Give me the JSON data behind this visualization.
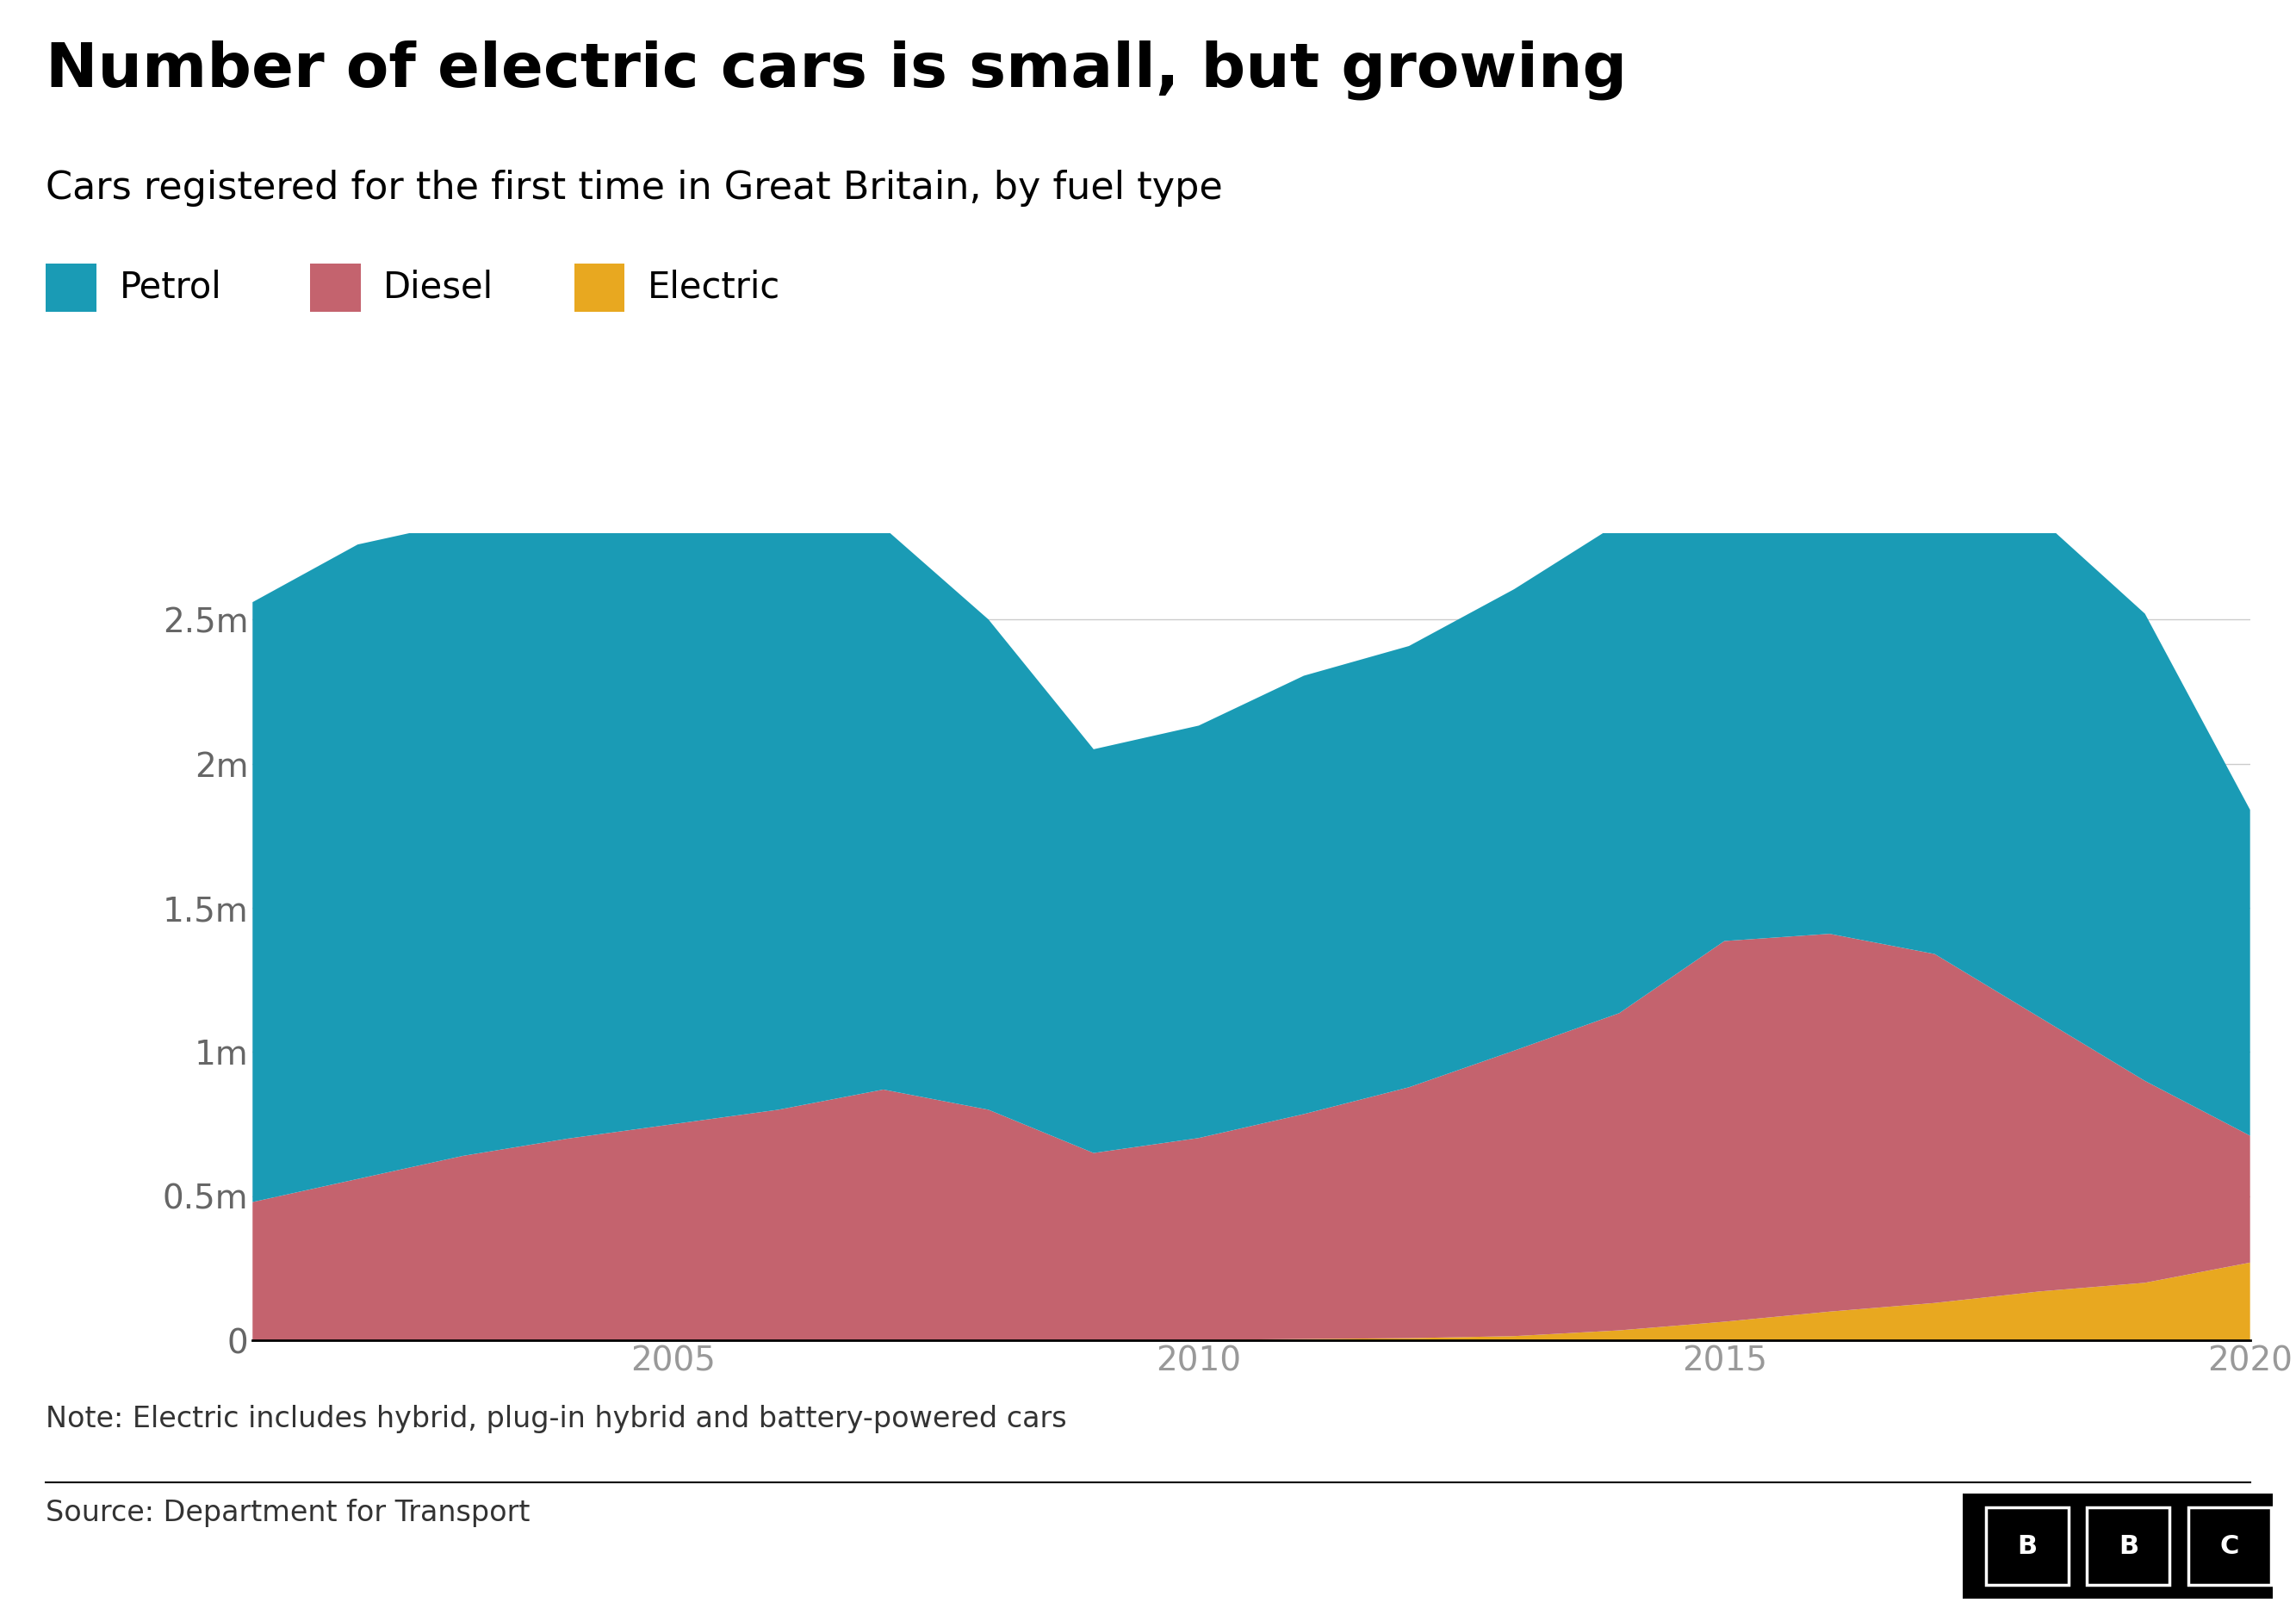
{
  "title": "Number of electric cars is small, but growing",
  "subtitle": "Cars registered for the first time in Great Britain, by fuel type",
  "note": "Note: Electric includes hybrid, plug-in hybrid and battery-powered cars",
  "source": "Source: Department for Transport",
  "colors": {
    "petrol": "#1a9bb5",
    "diesel": "#c4636e",
    "electric": "#e8a820"
  },
  "legend_labels": [
    "Petrol",
    "Diesel",
    "Electric"
  ],
  "years": [
    2001,
    2002,
    2003,
    2004,
    2005,
    2006,
    2007,
    2008,
    2009,
    2010,
    2011,
    2012,
    2013,
    2014,
    2015,
    2016,
    2017,
    2018,
    2019,
    2020
  ],
  "petrol": [
    2080000,
    2200000,
    2200000,
    2100000,
    2050000,
    2000000,
    1950000,
    1700000,
    1400000,
    1430000,
    1520000,
    1530000,
    1600000,
    1700000,
    1780000,
    1870000,
    1820000,
    1730000,
    1620000,
    1130000
  ],
  "diesel": [
    480000,
    560000,
    640000,
    700000,
    750000,
    800000,
    870000,
    800000,
    650000,
    700000,
    780000,
    870000,
    990000,
    1100000,
    1320000,
    1310000,
    1210000,
    950000,
    700000,
    440000
  ],
  "electric": [
    0,
    0,
    0,
    0,
    0,
    0,
    0,
    0,
    0,
    2000,
    5000,
    8000,
    15000,
    35000,
    65000,
    100000,
    130000,
    170000,
    200000,
    270000
  ],
  "ylim": [
    0,
    2800000
  ],
  "yticks": [
    0,
    500000,
    1000000,
    1500000,
    2000000,
    2500000
  ],
  "ytick_labels": [
    "0",
    "0.5m",
    "1m",
    "1.5m",
    "2m",
    "2.5m"
  ],
  "xticks": [
    2005,
    2010,
    2015,
    2020
  ],
  "background_color": "#ffffff",
  "title_fontsize": 52,
  "subtitle_fontsize": 32,
  "legend_fontsize": 30,
  "tick_fontsize": 28,
  "note_fontsize": 24,
  "source_fontsize": 24,
  "tick_color_y": "#666666",
  "tick_color_x": "#999999",
  "grid_color": "#cccccc",
  "spine_color": "#000000"
}
